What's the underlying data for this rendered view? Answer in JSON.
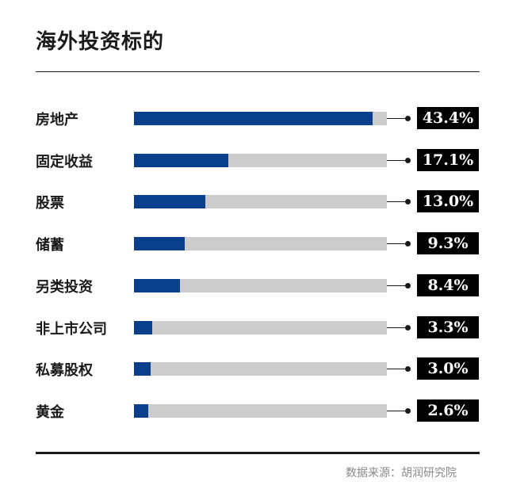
{
  "chart_data": {
    "type": "bar",
    "title": "海外投资标的",
    "categories": [
      "房地产",
      "固定收益",
      "股票",
      "储蓄",
      "另类投资",
      "非上市公司",
      "私募股权",
      "黄金"
    ],
    "values": [
      43.4,
      17.1,
      13.0,
      9.3,
      8.4,
      3.3,
      3.0,
      2.6
    ],
    "value_labels": [
      "43.4%",
      "17.1%",
      "13.0%",
      "9.3%",
      "8.4%",
      "3.3%",
      "3.0%",
      "2.6%"
    ],
    "xlim": [
      0,
      46
    ],
    "orientation": "horizontal",
    "grid": false,
    "colors": {
      "bar": "#0a3f8c",
      "track": "#cccccc",
      "label_bg": "#000000",
      "label_text": "#ffffff"
    }
  },
  "source": "数据来源：胡润研究院"
}
